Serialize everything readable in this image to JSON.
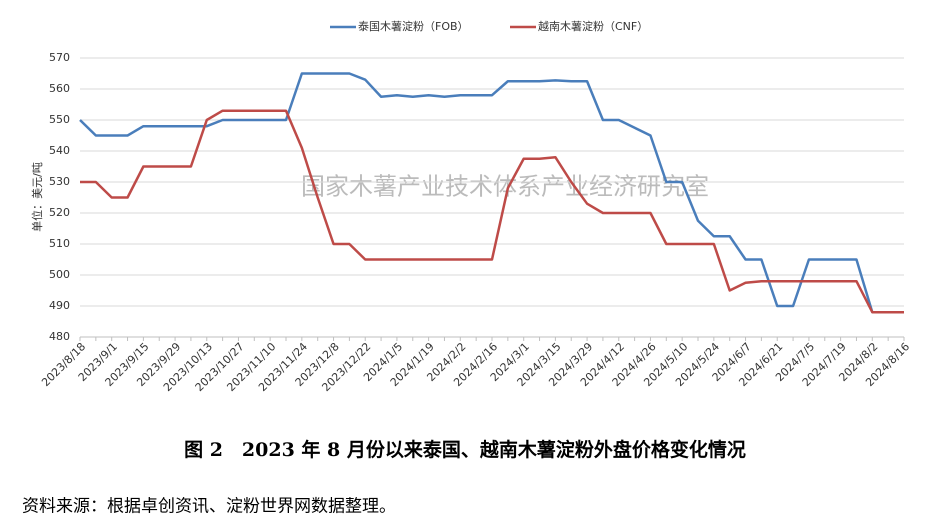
{
  "chart_data": {
    "type": "line",
    "legend": [
      "泰国木薯淀粉（FOB）",
      "越南木薯淀粉（CNF）"
    ],
    "y_label": "单位：美元/吨",
    "watermark": "国家木薯产业技术体系产业经济研究室",
    "caption": "图 2　2023 年 8 月份以来泰国、越南木薯淀粉外盘价格变化情况",
    "source": "资料来源：根据卓创资讯、淀粉世界网数据整理。",
    "categories": [
      "2023/8/18",
      null,
      "2023/9/1",
      null,
      "2023/9/15",
      null,
      "2023/9/29",
      null,
      "2023/10/13",
      null,
      "2023/10/27",
      null,
      "2023/11/10",
      null,
      "2023/11/24",
      null,
      "2023/12/8",
      null,
      "2023/12/22",
      null,
      "2024/1/5",
      null,
      "2024/1/19",
      null,
      "2024/2/2",
      null,
      "2024/2/16",
      null,
      "2024/3/1",
      null,
      "2024/3/15",
      null,
      "2024/3/29",
      null,
      "2024/4/12",
      null,
      "2024/4/26",
      null,
      "2024/5/10",
      null,
      "2024/5/24",
      null,
      "2024/6/7",
      null,
      "2024/6/21",
      null,
      "2024/7/5",
      null,
      "2024/7/19",
      null,
      "2024/8/2",
      null,
      "2024/8/16"
    ],
    "series": [
      {
        "name": "泰国木薯淀粉（FOB）",
        "color": "#4a7ebb",
        "values": [
          550,
          545,
          545,
          545,
          548,
          548,
          548,
          548,
          548,
          550,
          550,
          550,
          550,
          550,
          565,
          565,
          565,
          565,
          563,
          557.5,
          558,
          557.5,
          558,
          557.5,
          558,
          558,
          558,
          562.5,
          562.5,
          562.5,
          562.8,
          562.5,
          562.5,
          550,
          550,
          547.5,
          545,
          530,
          530,
          517.5,
          512.5,
          512.5,
          505,
          505,
          490,
          490,
          505,
          505,
          505,
          505,
          488,
          488,
          488
        ]
      },
      {
        "name": "越南木薯淀粉（CNF）",
        "color": "#be4b48",
        "values": [
          530,
          530,
          525,
          525,
          535,
          535,
          535,
          535,
          550,
          553,
          553,
          553,
          553,
          553,
          541,
          525,
          510,
          510,
          505,
          505,
          505,
          505,
          505,
          505,
          505,
          505,
          505,
          528,
          537.5,
          537.5,
          538,
          530,
          523,
          520,
          520,
          520,
          520,
          510,
          510,
          510,
          510,
          495,
          497.5,
          498,
          498,
          498,
          498,
          498,
          498,
          498,
          488,
          488,
          488
        ]
      }
    ],
    "ylim": [
      480,
      570
    ],
    "yticks": [
      480,
      490,
      500,
      510,
      520,
      530,
      540,
      550,
      560,
      570
    ],
    "grid": true
  }
}
